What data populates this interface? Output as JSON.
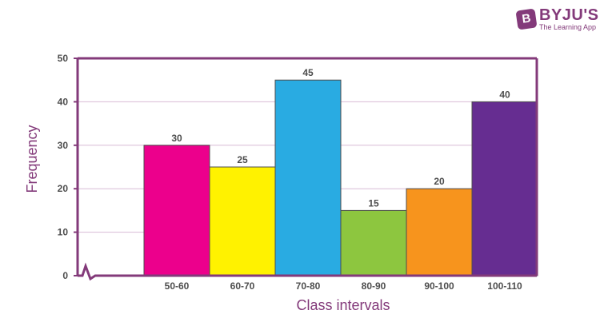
{
  "brand": {
    "name": "BYJU'S",
    "tagline": "The Learning App",
    "mark": "B",
    "color": "#833a7a"
  },
  "chart_data": {
    "type": "bar",
    "title": "",
    "xlabel": "Class intervals",
    "ylabel": "Frequency",
    "categories": [
      "50-60",
      "60-70",
      "70-80",
      "80-90",
      "90-100",
      "100-110"
    ],
    "values": [
      30,
      25,
      45,
      15,
      20,
      40
    ],
    "data_labels": [
      "30",
      "25",
      "45",
      "15",
      "20",
      "40"
    ],
    "colors": [
      "#ec008c",
      "#fff200",
      "#29abe2",
      "#8dc63f",
      "#f7941d",
      "#662d91"
    ],
    "ylim": [
      0,
      50
    ],
    "yticks": [
      0,
      10,
      20,
      30,
      40,
      50
    ],
    "grid": true,
    "axis_break": true,
    "axis_color": "#833a7a",
    "grid_color": "#d8bcd6",
    "label_color": "#833a7a"
  }
}
